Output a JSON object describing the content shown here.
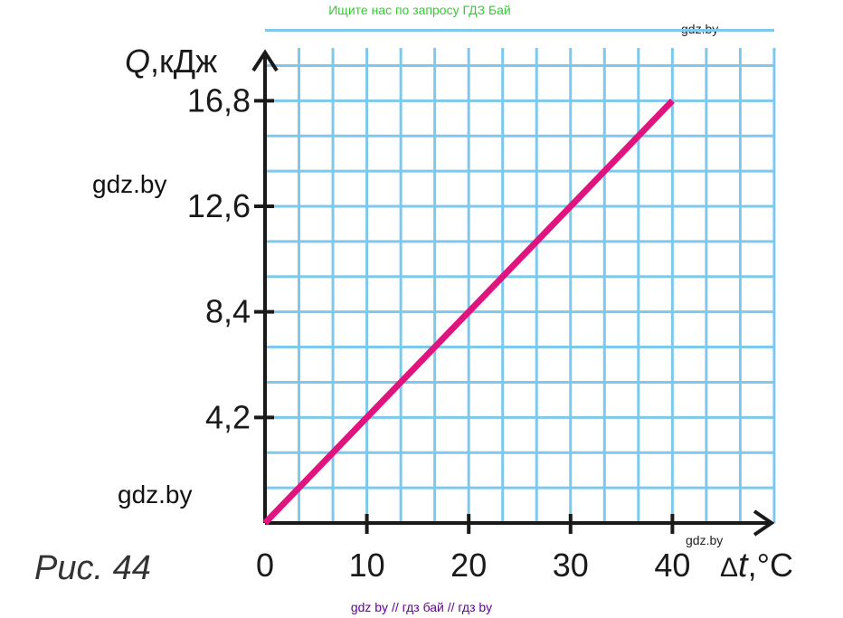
{
  "promo_text": "Ищите нас по запросу ГДЗ Бай",
  "watermarks": {
    "top_right": "gdz.by",
    "left_upper": "gdz.by",
    "left_lower": "gdz.by",
    "bottom_right": "gdz.by"
  },
  "caption": "Рис. 44",
  "footer_text": "gdz by  //  гдз бай  //  гдз by",
  "colors": {
    "grid": "#7ec8ec",
    "line": "#e0147f",
    "axis": "#1a1a1a"
  },
  "chart_data": {
    "type": "line",
    "title": "",
    "xlabel_delta": "Δ",
    "xlabel_var": "t",
    "xlabel_unit": ",°C",
    "ylabel_var": "Q",
    "ylabel_unit": ",кДж",
    "xlim": [
      0,
      50
    ],
    "ylim": [
      0,
      18.9
    ],
    "x_ticks": [
      0,
      10,
      20,
      30,
      40
    ],
    "x_tick_labels": [
      "0",
      "10",
      "20",
      "30",
      "40"
    ],
    "y_ticks": [
      4.2,
      8.4,
      12.6,
      16.8
    ],
    "y_tick_labels": [
      "4,2",
      "8,4",
      "12,6",
      "16,8"
    ],
    "grid": true,
    "grid_x_step": 3.333,
    "grid_y_step": 1.4,
    "series": [
      {
        "x": [
          0,
          40
        ],
        "y": [
          0,
          16.8
        ]
      }
    ]
  }
}
